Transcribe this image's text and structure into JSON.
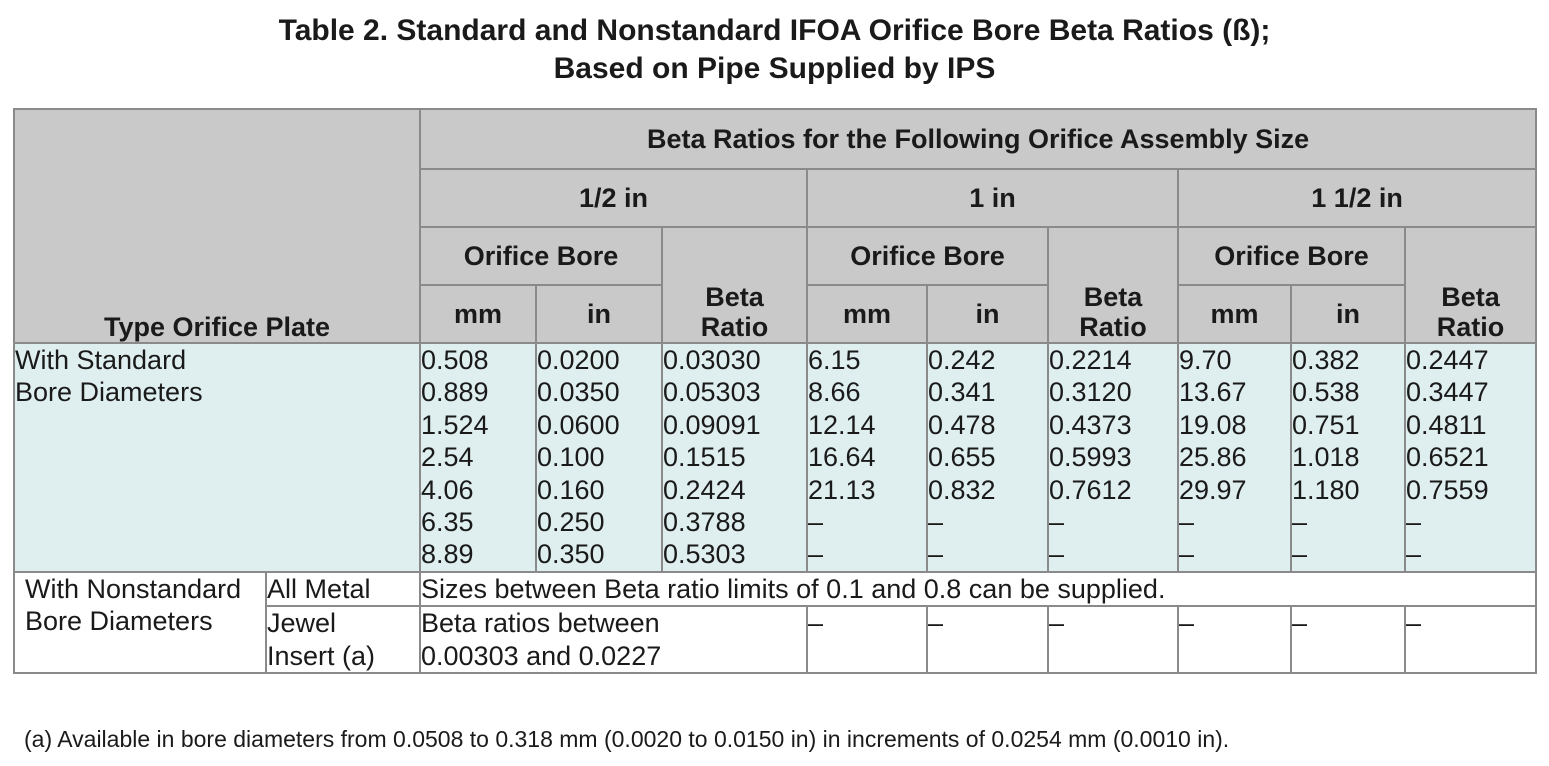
{
  "title": {
    "line1": "Table 2.  Standard and Nonstandard IFOA Orifice Bore Beta Ratios (ß);",
    "line2": "Based on Pipe Supplied by IPS"
  },
  "headers": {
    "type_orifice_plate": "Type Orifice Plate",
    "beta_ratios_span": "Beta Ratios for the Following Orifice Assembly Size",
    "sizes": [
      "1/2 in",
      "1 in",
      "1 1/2 in"
    ],
    "orifice_bore": "Orifice Bore",
    "beta_ratio_line1": "Beta",
    "beta_ratio_line2": "Ratio",
    "mm": "mm",
    "in": "in"
  },
  "standard": {
    "label_line1": "With Standard",
    "label_line2": "Bore Diameters",
    "columns": [
      [
        "0.508",
        "0.889",
        "1.524",
        "2.54",
        "4.06",
        "6.35",
        "8.89"
      ],
      [
        "0.0200",
        "0.0350",
        "0.0600",
        "0.100",
        "0.160",
        "0.250",
        "0.350"
      ],
      [
        "0.03030",
        "0.05303",
        "0.09091",
        "0.1515",
        "0.2424",
        "0.3788",
        "0.5303"
      ],
      [
        "6.15",
        "8.66",
        "12.14",
        "16.64",
        "21.13",
        "–",
        "–"
      ],
      [
        "0.242",
        "0.341",
        "0.478",
        "0.655",
        "0.832",
        "–",
        "–"
      ],
      [
        "0.2214",
        "0.3120",
        "0.4373",
        "0.5993",
        "0.7612",
        "–",
        "–"
      ],
      [
        "9.70",
        "13.67",
        "19.08",
        "25.86",
        "29.97",
        "–",
        "–"
      ],
      [
        "0.382",
        "0.538",
        "0.751",
        "1.018",
        "1.180",
        "–",
        "–"
      ],
      [
        "0.2447",
        "0.3447",
        "0.4811",
        "0.6521",
        "0.7559",
        "–",
        "–"
      ]
    ]
  },
  "nonstandard": {
    "label_line1": "With Nonstandard",
    "label_line2": "Bore Diameters",
    "all_metal_label": "All Metal",
    "all_metal_text": "Sizes between Beta ratio limits of 0.1 and 0.8 can be supplied.",
    "jewel_label_line1": "Jewel",
    "jewel_label_line2": "Insert (a)",
    "jewel_text_line1": "Beta ratios between",
    "jewel_text_line2": "0.00303 and 0.0227",
    "jewel_dashes": [
      "–",
      "–",
      "–",
      "–",
      "–",
      "–"
    ]
  },
  "footnote": "(a) Available in bore diameters from 0.0508 to 0.318 mm (0.0020 to 0.0150 in) in increments of 0.0254 mm (0.0010 in)."
}
